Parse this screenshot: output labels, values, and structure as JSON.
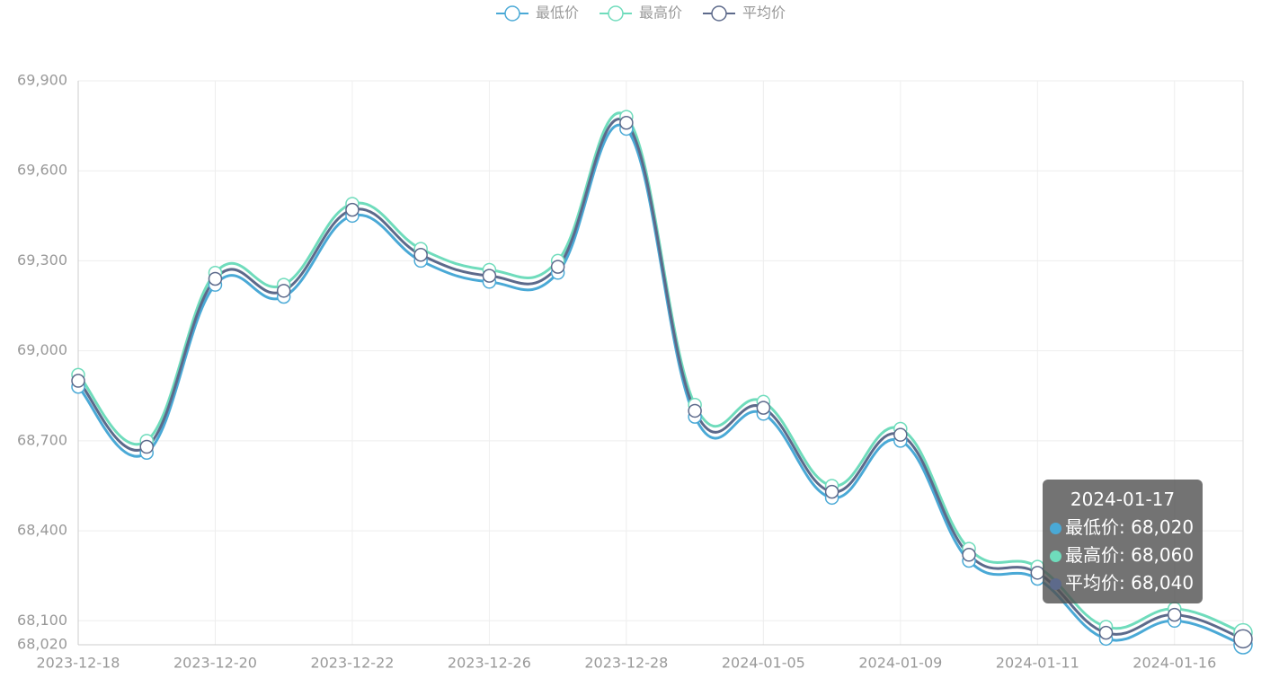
{
  "chart_data": {
    "type": "line",
    "categories": [
      "2023-12-18",
      null,
      "2023-12-20",
      null,
      "2023-12-22",
      null,
      "2023-12-26",
      null,
      "2023-12-28",
      null,
      "2024-01-05",
      null,
      "2024-01-09",
      null,
      "2024-01-11",
      null,
      "2024-01-16",
      null
    ],
    "series": [
      {
        "name": "最低价",
        "color": "#4aa9d6",
        "values": [
          68880,
          68660,
          69220,
          69180,
          69450,
          69300,
          69230,
          69260,
          69740,
          68780,
          68790,
          68510,
          68700,
          68300,
          68240,
          68040,
          68100,
          68020
        ]
      },
      {
        "name": "最高价",
        "color": "#6fdcbc",
        "values": [
          68920,
          68700,
          69260,
          69220,
          69490,
          69340,
          69270,
          69300,
          69780,
          68820,
          68830,
          68550,
          68740,
          68340,
          68280,
          68080,
          68140,
          68060
        ]
      },
      {
        "name": "平均价",
        "color": "#5d6a8b",
        "values": [
          68900,
          68680,
          69240,
          69200,
          69470,
          69320,
          69250,
          69280,
          69760,
          68800,
          68810,
          68530,
          68720,
          68320,
          68260,
          68060,
          68120,
          68040
        ]
      }
    ],
    "ylim": [
      68020,
      69900
    ],
    "yticks": [
      {
        "value": 68020,
        "label": "68,020"
      },
      {
        "value": 68100,
        "label": "68,100"
      },
      {
        "value": 68400,
        "label": "68,400"
      },
      {
        "value": 68700,
        "label": "68,700"
      },
      {
        "value": 69000,
        "label": "69,000"
      },
      {
        "value": 69300,
        "label": "69,300"
      },
      {
        "value": 69600,
        "label": "69,600"
      },
      {
        "value": 69900,
        "label": "69,900"
      }
    ],
    "grid": true,
    "legend": "top",
    "tooltip": {
      "title": "2024-01-17",
      "rows": [
        "最低价: 68,020",
        "最高价: 68,060",
        "平均价: 68,040"
      ]
    }
  }
}
